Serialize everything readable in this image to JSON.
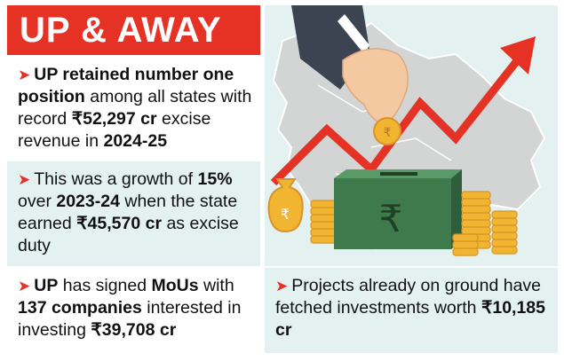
{
  "title": "UP & AWAY",
  "bullets": [
    {
      "parts": [
        {
          "text": "UP retained number one position",
          "bold": true
        },
        {
          "text": " among all states with record ",
          "bold": false
        },
        {
          "text": "₹52,297 cr",
          "bold": true
        },
        {
          "text": " excise revenue in ",
          "bold": false
        },
        {
          "text": "2024-25",
          "bold": true
        }
      ]
    },
    {
      "parts": [
        {
          "text": "This was a growth of ",
          "bold": false
        },
        {
          "text": "15%",
          "bold": true
        },
        {
          "text": " over ",
          "bold": false
        },
        {
          "text": "2023-24",
          "bold": true
        },
        {
          "text": " when the state earned ",
          "bold": false
        },
        {
          "text": "₹45,570 cr",
          "bold": true
        },
        {
          "text": " as excise duty",
          "bold": false
        }
      ]
    },
    {
      "parts": [
        {
          "text": "UP",
          "bold": true
        },
        {
          "text": " has signed ",
          "bold": false
        },
        {
          "text": "MoUs",
          "bold": true
        },
        {
          "text": " with ",
          "bold": false
        },
        {
          "text": "137 companies",
          "bold": true
        },
        {
          "text": " interested in investing ",
          "bold": false
        },
        {
          "text": "₹39,708 cr",
          "bold": true
        }
      ]
    },
    {
      "parts": [
        {
          "text": "Projects already on ground have fetched investments worth ",
          "bold": false
        },
        {
          "text": "₹10,185 cr",
          "bold": true
        }
      ]
    }
  ],
  "illustration": {
    "box_symbol": "₹",
    "bag_symbol": "₹",
    "coin_symbol": "₹"
  },
  "colors": {
    "accent": "#e53225",
    "panel_tint": "#e3f1f0",
    "box_green": "#3f7a4c",
    "coin_gold": "#f2b531",
    "map_gray": "#d2d5d4"
  }
}
